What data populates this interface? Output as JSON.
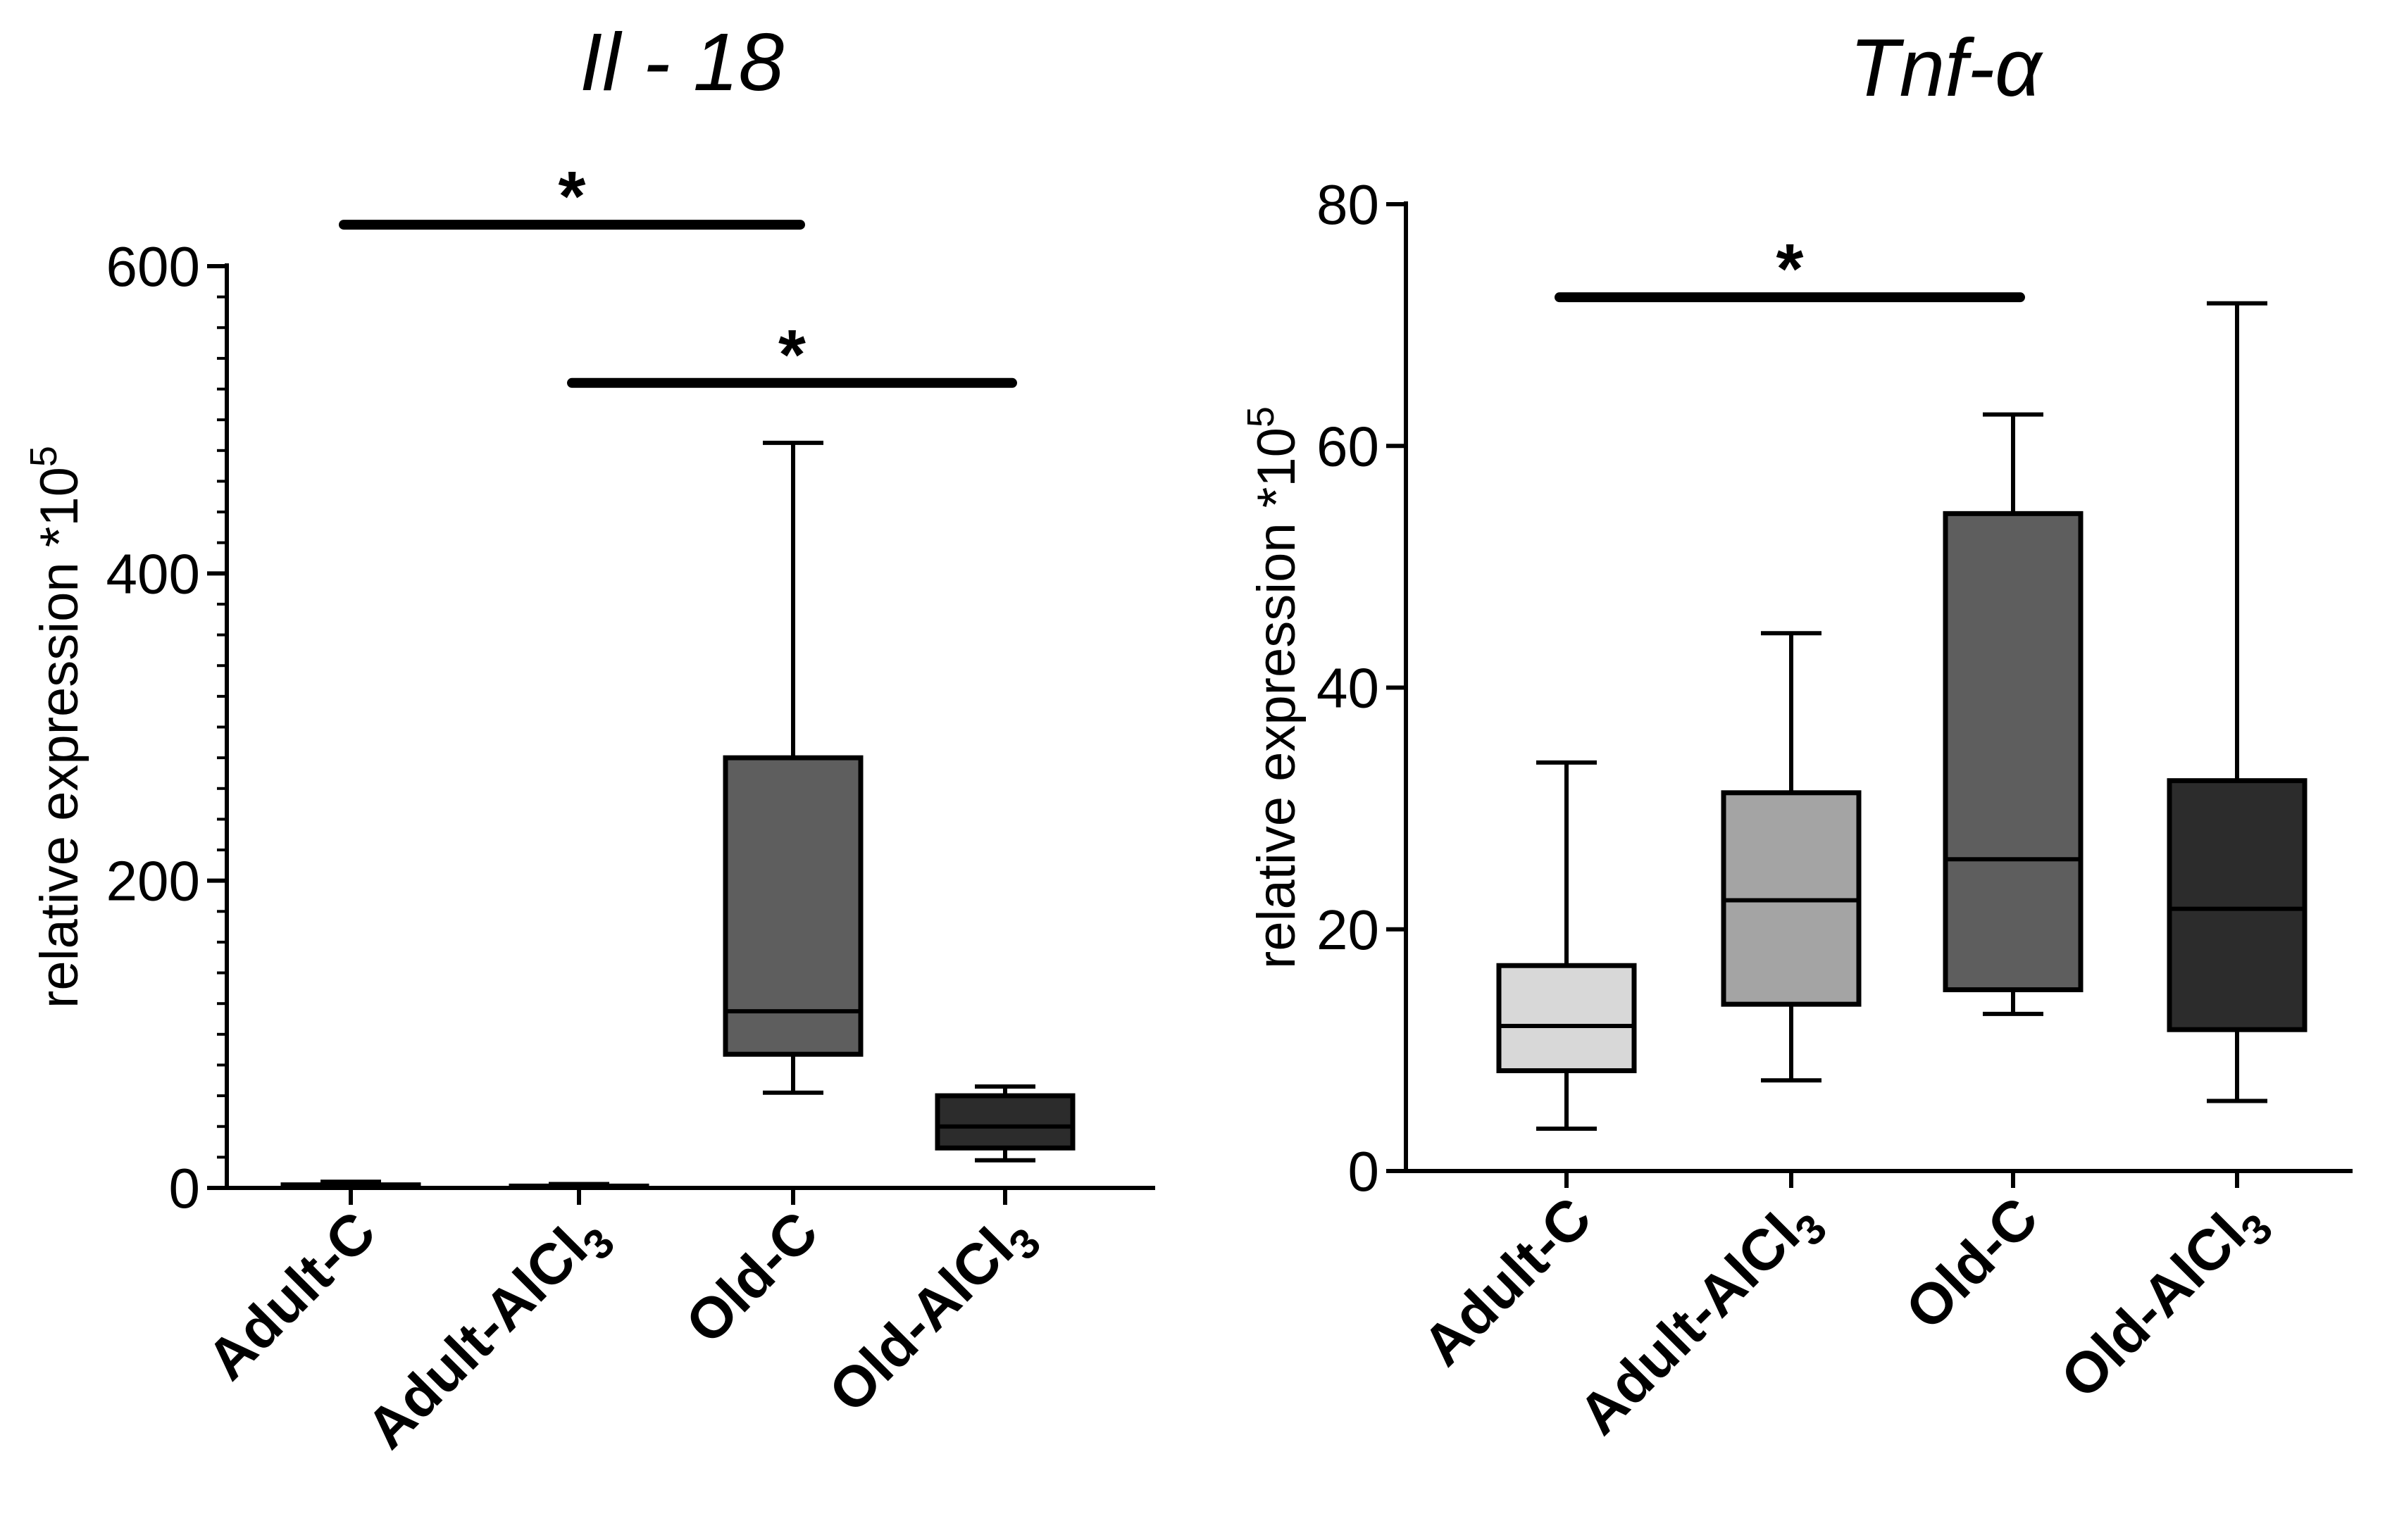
{
  "chart_data": [
    {
      "type": "box",
      "title": "Il - 18",
      "ylabel": "relative expression *10",
      "ylabel_exponent": "5",
      "ylim": [
        0,
        600
      ],
      "yticks": [
        0,
        200,
        400,
        600
      ],
      "minor_tick_step": 20,
      "categories": [
        {
          "main": "Adult-C",
          "sub": ""
        },
        {
          "main": "Adult-AlCl",
          "sub": "3"
        },
        {
          "main": "Old-C",
          "sub": ""
        },
        {
          "main": "Old-AlCl",
          "sub": "3"
        }
      ],
      "boxes": [
        {
          "whisker_min": 0.3,
          "q1": 0.6,
          "median": 1.2,
          "q3": 2.0,
          "whisker_max": 4.0,
          "color": "#d8d8d8"
        },
        {
          "whisker_min": 0.2,
          "q1": 0.4,
          "median": 0.8,
          "q3": 1.2,
          "whisker_max": 2.5,
          "color": "#a4a4a4"
        },
        {
          "whisker_min": 62,
          "q1": 87,
          "median": 115,
          "q3": 280,
          "whisker_max": 485,
          "color": "#5e5e5e"
        },
        {
          "whisker_min": 18,
          "q1": 26,
          "median": 40,
          "q3": 60,
          "whisker_max": 66,
          "color": "#2c2c2c"
        }
      ],
      "significance": [
        {
          "from": 0,
          "to": 2,
          "y": 627,
          "label": "*"
        },
        {
          "from": 1,
          "to": 3,
          "y": 524,
          "label": "*"
        }
      ]
    },
    {
      "type": "box",
      "title": "Tnf-α",
      "ylabel": "relative expression *10",
      "ylabel_exponent": "5",
      "ylim": [
        0,
        80
      ],
      "yticks": [
        0,
        20,
        40,
        60,
        80
      ],
      "minor_tick_step": null,
      "categories": [
        {
          "main": "Adult-C",
          "sub": ""
        },
        {
          "main": "Adult-AlCl",
          "sub": "3"
        },
        {
          "main": "Old-C",
          "sub": ""
        },
        {
          "main": "Old-AlCl",
          "sub": "3"
        }
      ],
      "boxes": [
        {
          "whisker_min": 3.5,
          "q1": 8.3,
          "median": 12.0,
          "q3": 17.0,
          "whisker_max": 33.8,
          "color": "#d8d8d8"
        },
        {
          "whisker_min": 7.5,
          "q1": 13.8,
          "median": 22.4,
          "q3": 31.3,
          "whisker_max": 44.5,
          "color": "#a4a4a4"
        },
        {
          "whisker_min": 13.0,
          "q1": 15.0,
          "median": 25.8,
          "q3": 54.4,
          "whisker_max": 62.6,
          "color": "#5e5e5e"
        },
        {
          "whisker_min": 5.8,
          "q1": 11.7,
          "median": 21.7,
          "q3": 32.3,
          "whisker_max": 71.8,
          "color": "#2c2c2c"
        }
      ],
      "significance": [
        {
          "from": 0,
          "to": 2,
          "y": 72.3,
          "label": "*"
        }
      ]
    }
  ]
}
